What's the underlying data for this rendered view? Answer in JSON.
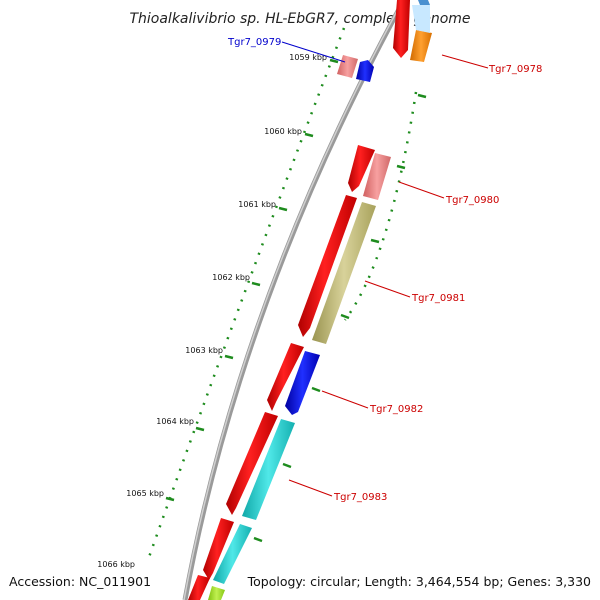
{
  "title": "Thioalkalivibrio sp. HL-EbGR7, complete genome",
  "footer": {
    "accession": "Accession: NC_011901",
    "topology": "Topology: circular; Length: 3,464,554 bp; Genes: 3,330"
  },
  "ticks": [
    "1059 kbp",
    "1060 kbp",
    "1061 kbp",
    "1062 kbp",
    "1063 kbp",
    "1064 kbp",
    "1065 kbp",
    "1066 kbp"
  ],
  "genes": [
    {
      "name": "Tgr7_0979",
      "color": "#0000cc"
    },
    {
      "name": "Tgr7_0978",
      "color": "#cc0000"
    },
    {
      "name": "Tgr7_0980",
      "color": "#cc0000"
    },
    {
      "name": "Tgr7_0981",
      "color": "#cc0000"
    },
    {
      "name": "Tgr7_0982",
      "color": "#cc0000"
    },
    {
      "name": "Tgr7_0983",
      "color": "#cc0000"
    }
  ],
  "colors": {
    "backbone": "#808080",
    "cds": "#ff0000",
    "pink": "#f08080",
    "blue": "#0000ff",
    "olive": "#bdb76b",
    "cyan": "#20d0d0",
    "orange": "#ff8c00",
    "lime": "#a0e020",
    "dots": "#1e8c1e"
  }
}
